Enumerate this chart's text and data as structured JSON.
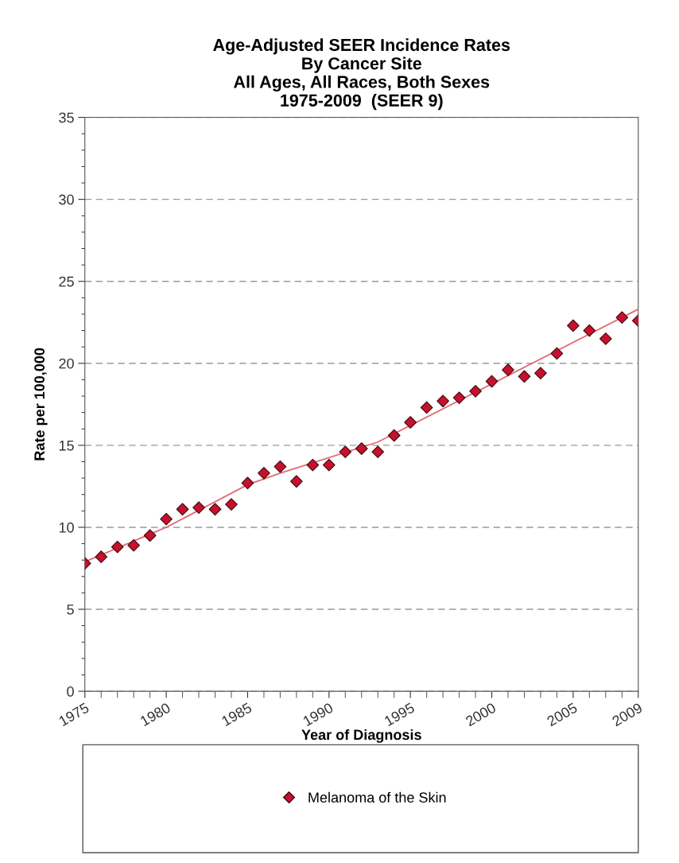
{
  "chart_data": {
    "type": "scatter",
    "title": "Age-Adjusted SEER Incidence Rates\nBy Cancer Site\nAll Ages, All Races, Both Sexes\n1975-2009  (SEER 9)",
    "xlabel": "Year of Diagnosis",
    "ylabel": "Rate per 100,000",
    "x": [
      1975,
      1976,
      1977,
      1978,
      1979,
      1980,
      1981,
      1982,
      1983,
      1984,
      1985,
      1986,
      1987,
      1988,
      1989,
      1990,
      1991,
      1992,
      1993,
      1994,
      1995,
      1996,
      1997,
      1998,
      1999,
      2000,
      2001,
      2002,
      2003,
      2004,
      2005,
      2006,
      2007,
      2008,
      2009
    ],
    "series": [
      {
        "name": "Melanoma of the Skin",
        "color": "#c8102e",
        "marker": "diamond",
        "values": [
          7.8,
          8.2,
          8.8,
          8.9,
          9.5,
          10.5,
          11.1,
          11.2,
          11.1,
          11.4,
          12.7,
          13.3,
          13.7,
          12.8,
          13.8,
          13.8,
          14.6,
          14.8,
          14.6,
          15.6,
          16.4,
          17.3,
          17.7,
          17.9,
          18.3,
          18.9,
          19.6,
          19.2,
          19.4,
          20.6,
          22.3,
          22.0,
          21.5,
          22.8,
          22.6
        ]
      },
      {
        "type": "line",
        "color": "#e06a72",
        "line_style": "solid",
        "marker": "none",
        "x": [
          1975,
          1980,
          1985,
          1987,
          1993,
          2009
        ],
        "values": [
          7.9,
          10.0,
          12.6,
          13.3,
          15.2,
          23.3
        ]
      }
    ],
    "xlim": [
      1975,
      2009
    ],
    "ylim": [
      0,
      35
    ],
    "xticks": [
      1975,
      {
        "value": 1976,
        "label": null
      },
      {
        "value": 1977,
        "label": null
      },
      {
        "value": 1978,
        "label": null
      },
      {
        "value": 1979,
        "label": null
      },
      1980,
      {
        "value": 1981,
        "label": null
      },
      {
        "value": 1982,
        "label": null
      },
      {
        "value": 1983,
        "label": null
      },
      {
        "value": 1984,
        "label": null
      },
      1985,
      {
        "value": 1986,
        "label": null
      },
      {
        "value": 1987,
        "label": null
      },
      {
        "value": 1988,
        "label": null
      },
      {
        "value": 1989,
        "label": null
      },
      1990,
      {
        "value": 1991,
        "label": null
      },
      {
        "value": 1992,
        "label": null
      },
      {
        "value": 1993,
        "label": null
      },
      {
        "value": 1994,
        "label": null
      },
      1995,
      {
        "value": 1996,
        "label": null
      },
      {
        "value": 1997,
        "label": null
      },
      {
        "value": 1998,
        "label": null
      },
      {
        "value": 1999,
        "label": null
      },
      2000,
      {
        "value": 2001,
        "label": null
      },
      {
        "value": 2002,
        "label": null
      },
      {
        "value": 2003,
        "label": null
      },
      {
        "value": 2004,
        "label": null
      },
      2005,
      {
        "value": 2006,
        "label": null
      },
      {
        "value": 2007,
        "label": null
      },
      {
        "value": 2008,
        "label": null
      },
      2009
    ],
    "yticks": [
      0,
      {
        "value": 1,
        "label": null
      },
      {
        "value": 2,
        "label": null
      },
      {
        "value": 3,
        "label": null
      },
      {
        "value": 4,
        "label": null
      },
      5,
      {
        "value": 6,
        "label": null
      },
      {
        "value": 7,
        "label": null
      },
      {
        "value": 8,
        "label": null
      },
      {
        "value": 9,
        "label": null
      },
      10,
      {
        "value": 11,
        "label": null
      },
      {
        "value": 12,
        "label": null
      },
      {
        "value": 13,
        "label": null
      },
      {
        "value": 14,
        "label": null
      },
      15,
      {
        "value": 16,
        "label": null
      },
      {
        "value": 17,
        "label": null
      },
      {
        "value": 18,
        "label": null
      },
      {
        "value": 19,
        "label": null
      },
      20,
      {
        "value": 21,
        "label": null
      },
      {
        "value": 22,
        "label": null
      },
      {
        "value": 23,
        "label": null
      },
      {
        "value": 24,
        "label": null
      },
      25,
      {
        "value": 26,
        "label": null
      },
      {
        "value": 27,
        "label": null
      },
      {
        "value": 28,
        "label": null
      },
      {
        "value": 29,
        "label": null
      },
      30,
      {
        "value": 31,
        "label": null
      },
      {
        "value": 32,
        "label": null
      },
      {
        "value": 33,
        "label": null
      },
      {
        "value": 34,
        "label": null
      },
      35
    ],
    "grid": "y",
    "legend": "bottom"
  }
}
